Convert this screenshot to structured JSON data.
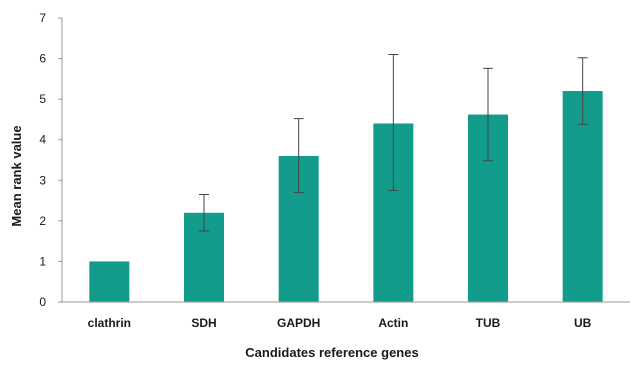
{
  "chart_data": {
    "type": "bar",
    "categories": [
      "clathrin",
      "SDH",
      "GAPDH",
      "Actin",
      "TUB",
      "UB"
    ],
    "values": [
      1.0,
      2.2,
      3.6,
      4.4,
      4.62,
      5.2
    ],
    "error_bars": {
      "lower": [
        1.0,
        1.75,
        2.7,
        2.75,
        3.48,
        4.38
      ],
      "upper": [
        1.0,
        2.65,
        4.52,
        6.1,
        5.76,
        6.02
      ]
    },
    "xlabel": "Candidates reference genes",
    "ylabel": "Mean rank value",
    "ylim": [
      0,
      7
    ],
    "yticks": [
      "0",
      "1",
      "2",
      "3",
      "4",
      "5",
      "6",
      "7"
    ],
    "grid": false,
    "legend": "none",
    "colors": {
      "bar": "#139C8C",
      "axis": "#9a9a9a",
      "error": "#444444"
    }
  }
}
